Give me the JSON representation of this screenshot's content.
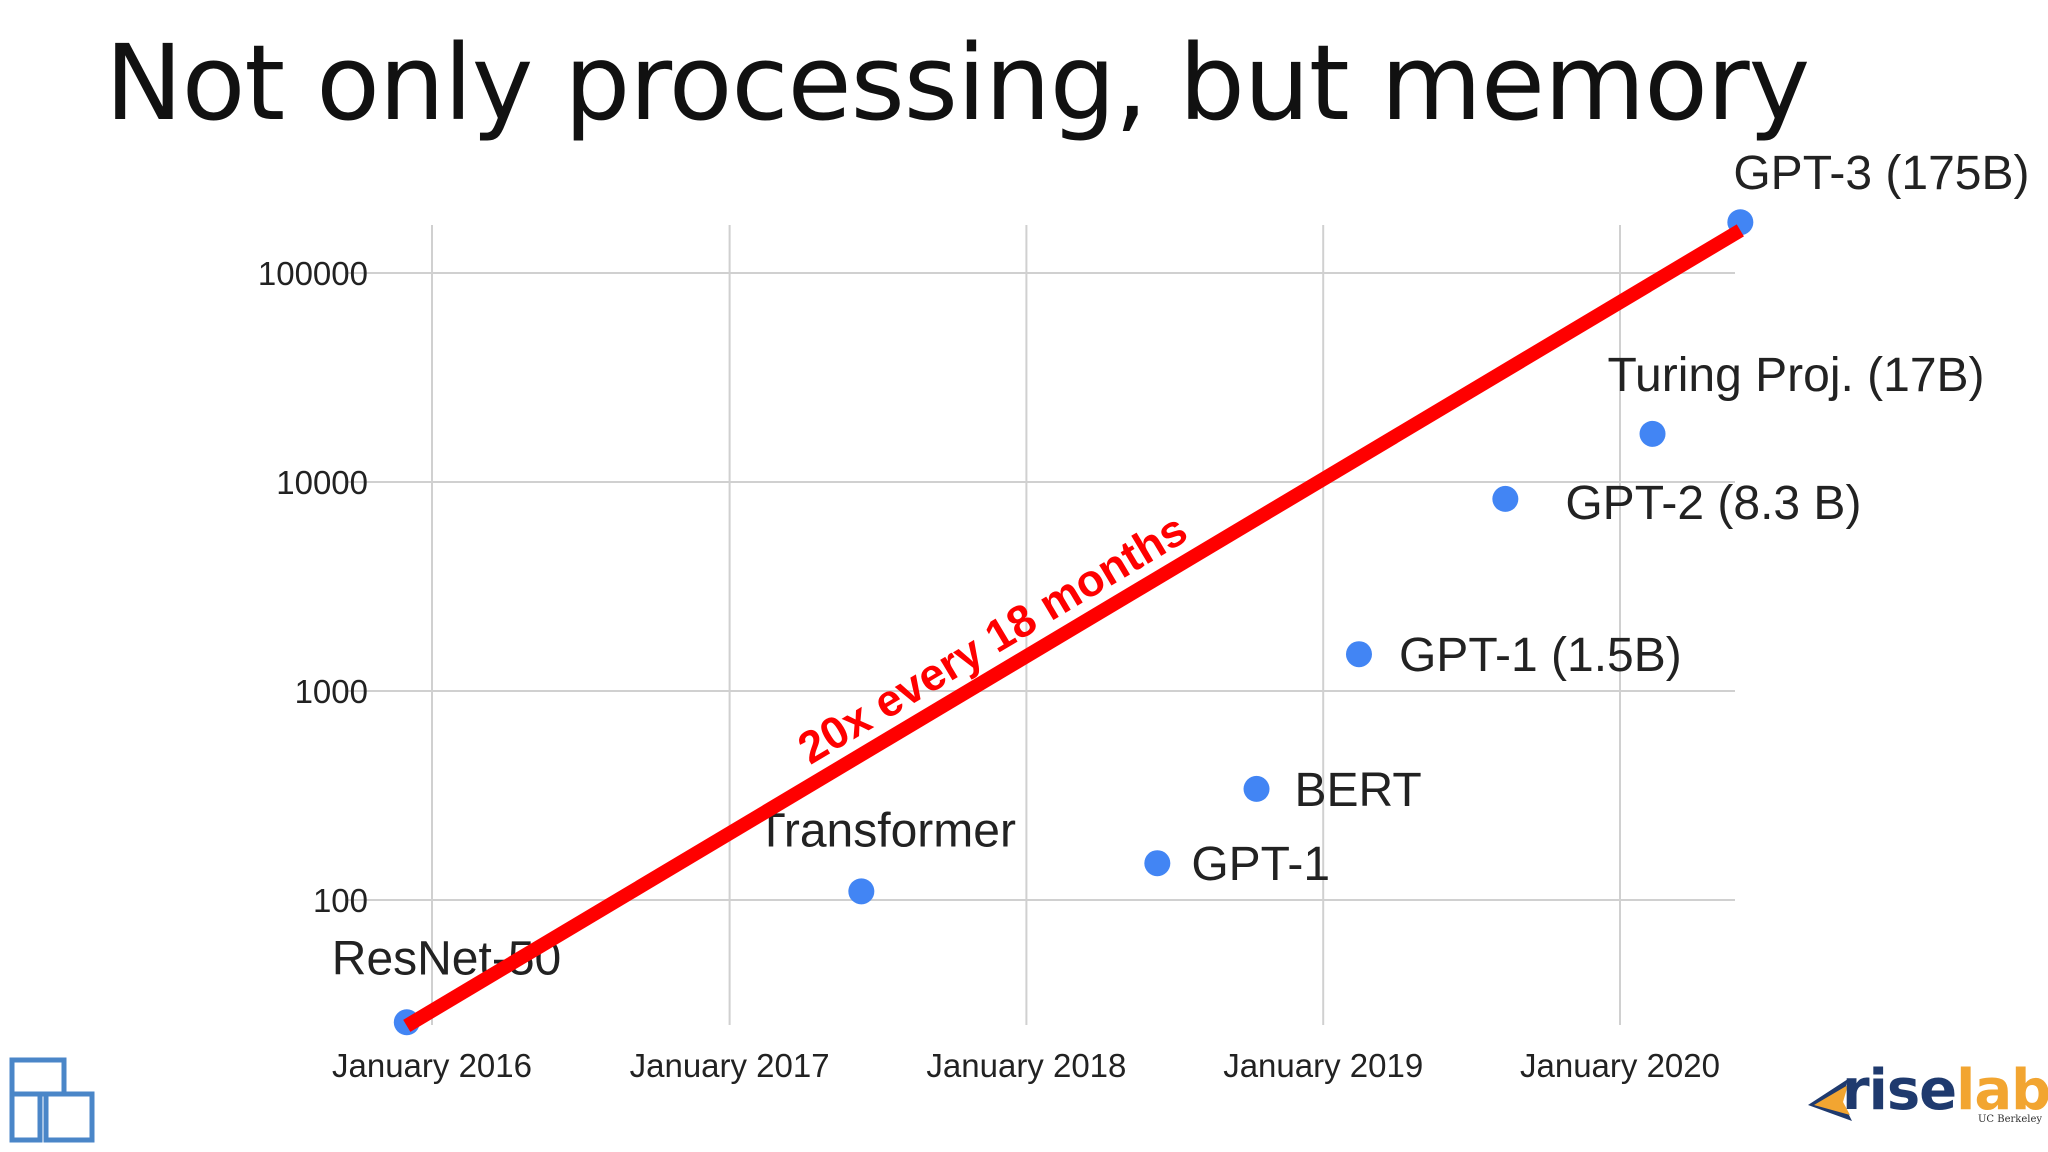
{
  "slide": {
    "title": "Not only processing, but memory"
  },
  "chart_data": {
    "type": "scatter",
    "title": "",
    "xlabel": "",
    "ylabel": "",
    "y_scale": "log",
    "ylim": [
      25,
      175000
    ],
    "xlim": [
      "2015-10-01",
      "2020-05-01"
    ],
    "grid": true,
    "x_ticks": [
      "January 2016",
      "January 2017",
      "January 2018",
      "January 2019",
      "January 2020"
    ],
    "y_ticks": [
      "100",
      "1000",
      "10000",
      "100000"
    ],
    "x_tick_values": [
      "2016-01-01",
      "2017-01-01",
      "2018-01-01",
      "2019-01-01",
      "2020-01-01"
    ],
    "y_tick_values": [
      100,
      1000,
      10000,
      100000
    ],
    "point_color": "#4285f4",
    "points": [
      {
        "label": "ResNet-50",
        "x": "2015-12-01",
        "y": 26
      },
      {
        "label": "Transformer",
        "x": "2017-06-12",
        "y": 110
      },
      {
        "label": "GPT-1",
        "x": "2018-06-11",
        "y": 150
      },
      {
        "label": "BERT",
        "x": "2018-10-11",
        "y": 340
      },
      {
        "label": "GPT-1 (1.5B)",
        "x": "2019-02-14",
        "y": 1500
      },
      {
        "label": "GPT-2 (8.3 B)",
        "x": "2019-08-13",
        "y": 8300
      },
      {
        "label": "Turing Proj. (17B)",
        "x": "2020-02-10",
        "y": 17000
      },
      {
        "label": "GPT-3 (175B)",
        "x": "2020-05-28",
        "y": 175000
      }
    ],
    "trend_line": {
      "label": "20x every 18 months",
      "color": "#ff0000",
      "start": {
        "x": "2015-12-01",
        "y": 25
      },
      "end": {
        "x": "2020-05-28",
        "y": 160000
      }
    }
  },
  "logos": {
    "right_name": "riselab",
    "right_sub": "UC Berkeley",
    "left_icon": "grid-squares-icon",
    "right_icon": "riselab-arrow-icon",
    "left_color": "#4a86c8",
    "right_colors": [
      "#1f3a6e",
      "#f2a531"
    ]
  }
}
